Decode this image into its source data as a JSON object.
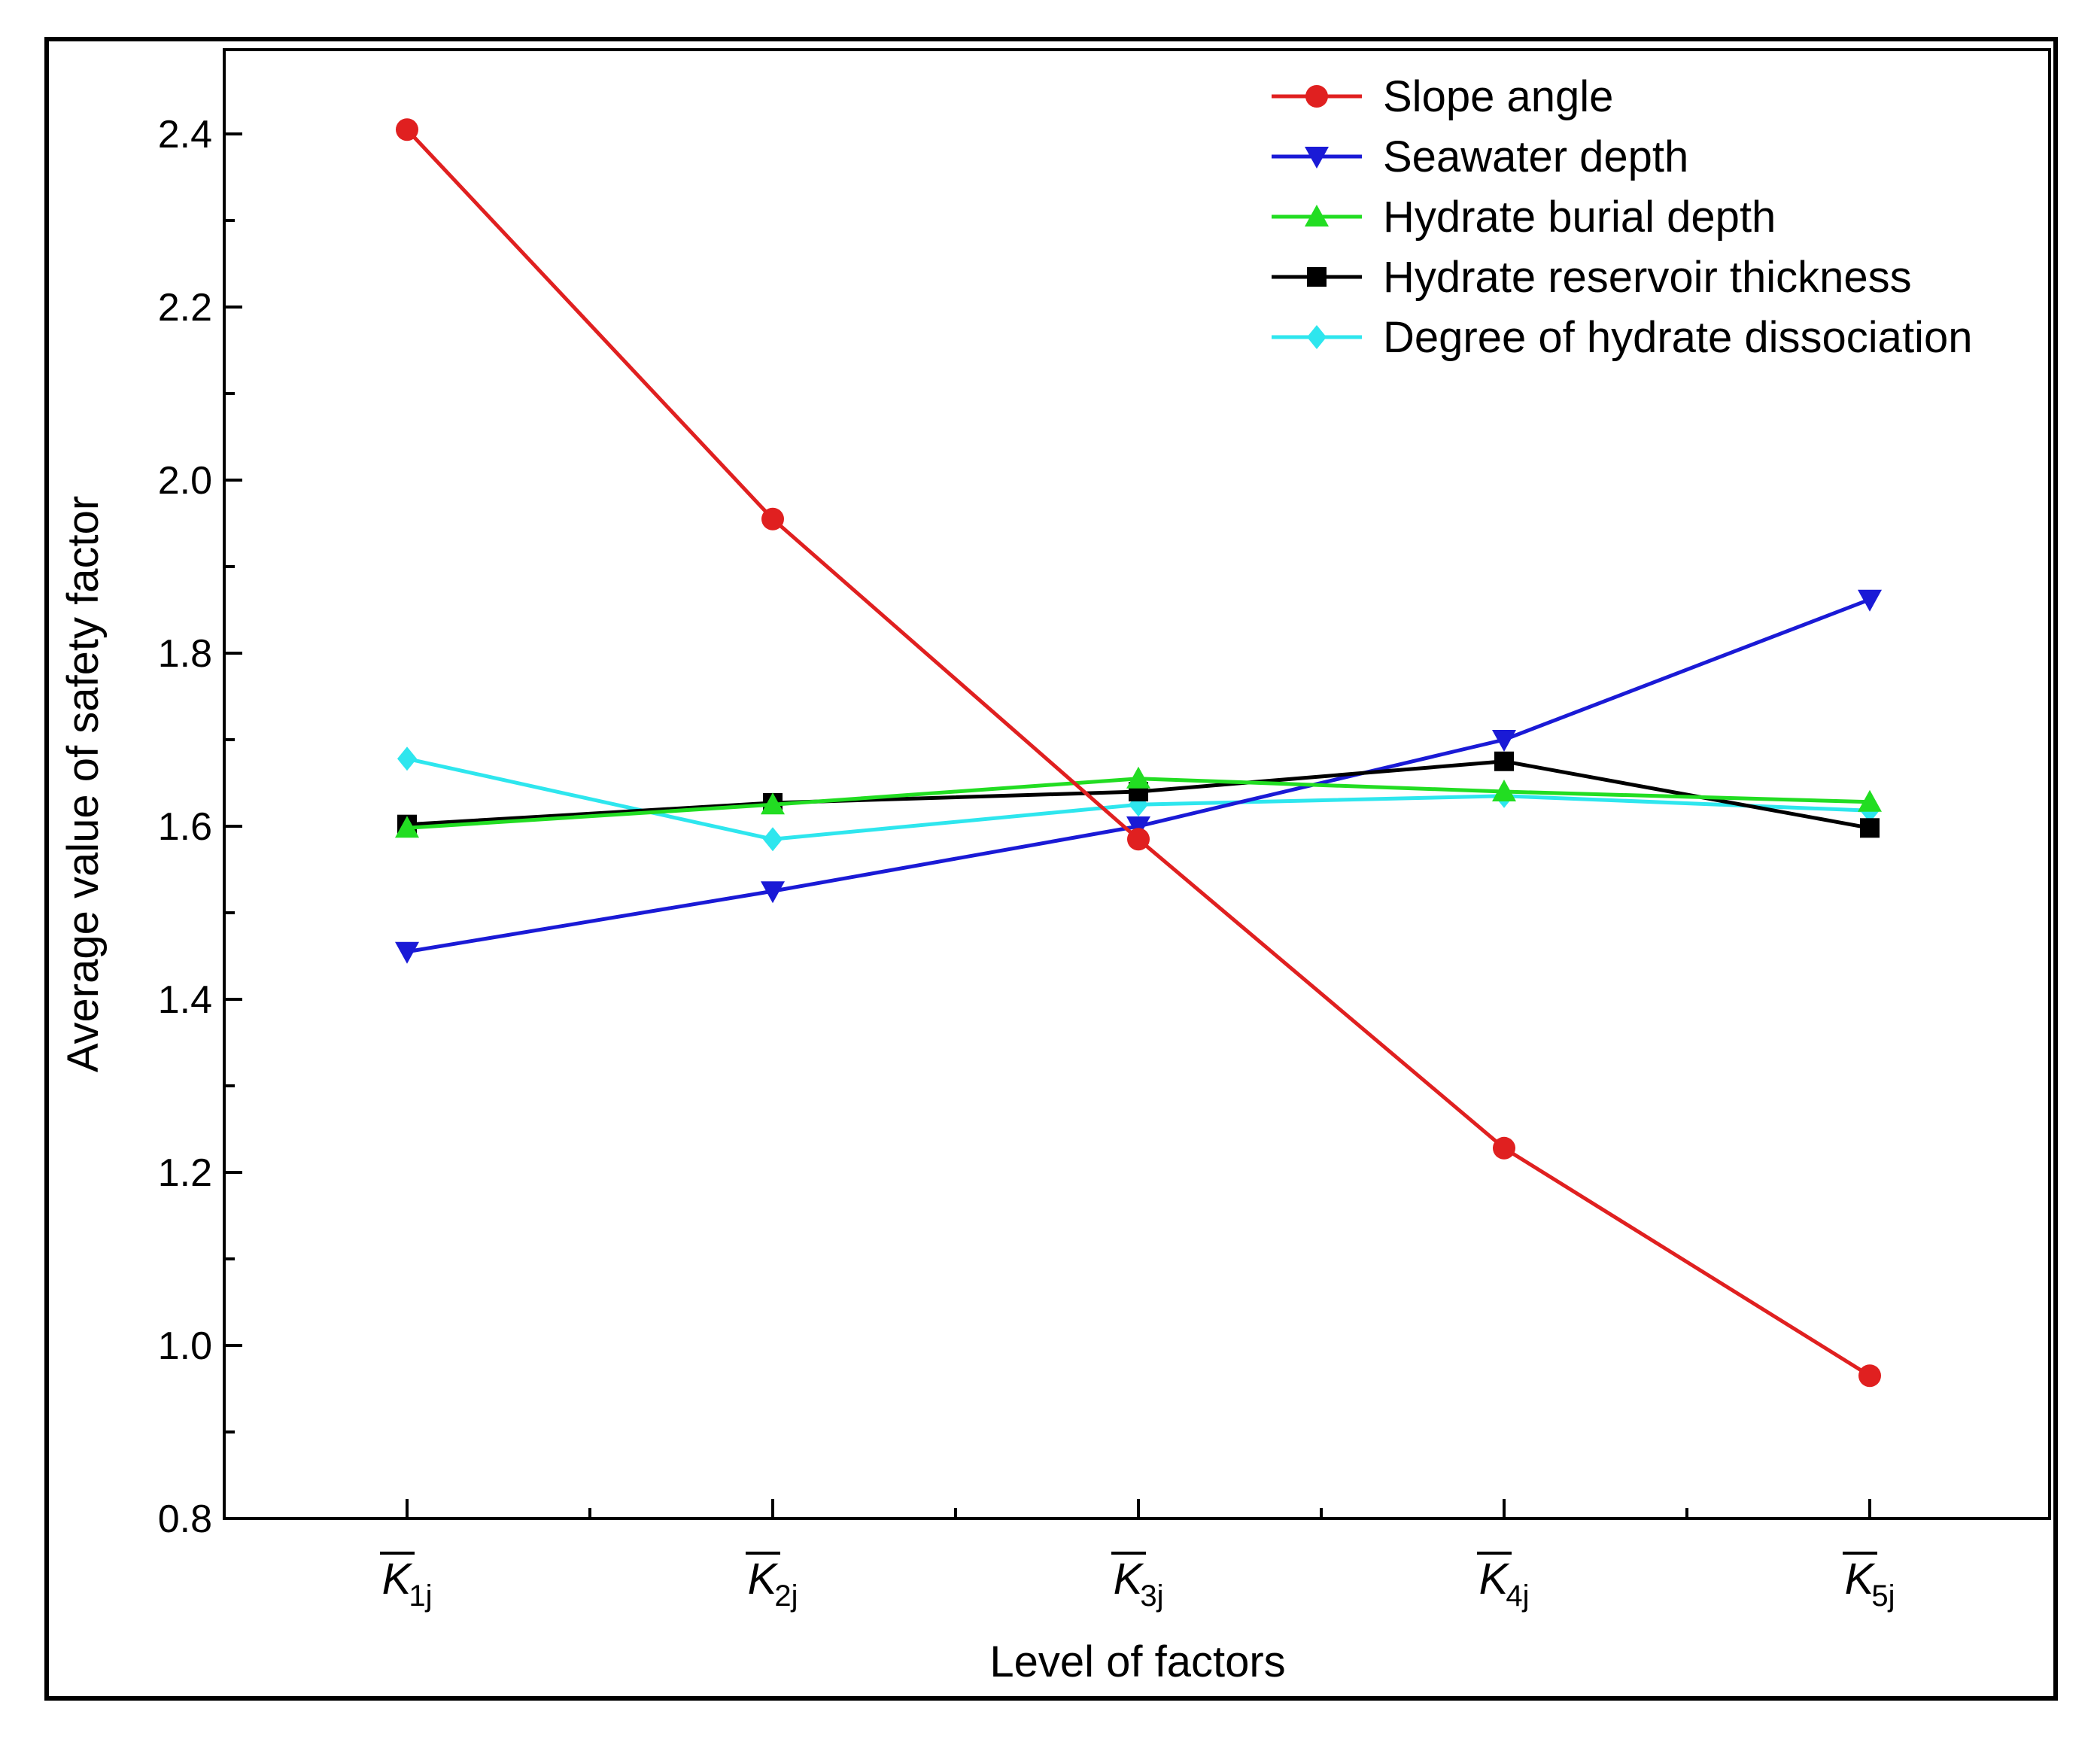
{
  "chart_data": {
    "type": "line",
    "title": "",
    "xlabel": "Level of factors",
    "ylabel": "Average value of safety factor",
    "categories": [
      {
        "base": "K",
        "sub": "1j"
      },
      {
        "base": "K",
        "sub": "2j"
      },
      {
        "base": "K",
        "sub": "3j"
      },
      {
        "base": "K",
        "sub": "4j"
      },
      {
        "base": "K",
        "sub": "5j"
      }
    ],
    "ylim": [
      0.8,
      2.5
    ],
    "yticks": [
      "0.8",
      "1.0",
      "1.2",
      "1.4",
      "1.6",
      "1.8",
      "2.0",
      "2.2",
      "2.4"
    ],
    "grid": false,
    "legend_position": "top-right",
    "series": [
      {
        "name": "Slope angle",
        "color": "#e02020",
        "marker": "circle",
        "values": [
          2.405,
          1.955,
          1.585,
          1.228,
          0.965
        ]
      },
      {
        "name": "Seawater depth",
        "color": "#1a1ad6",
        "marker": "triangle-down",
        "values": [
          1.455,
          1.525,
          1.6,
          1.7,
          1.862
        ]
      },
      {
        "name": "Hydrate burial depth",
        "color": "#22dd22",
        "marker": "triangle-up",
        "values": [
          1.598,
          1.625,
          1.655,
          1.64,
          1.628
        ]
      },
      {
        "name": "Hydrate reservoir thickness",
        "color": "#000000",
        "marker": "square",
        "values": [
          1.602,
          1.627,
          1.64,
          1.675,
          1.598
        ]
      },
      {
        "name": "Degree of hydrate dissociation",
        "color": "#2ee6ee",
        "marker": "diamond",
        "values": [
          1.678,
          1.585,
          1.625,
          1.635,
          1.618
        ]
      }
    ]
  }
}
